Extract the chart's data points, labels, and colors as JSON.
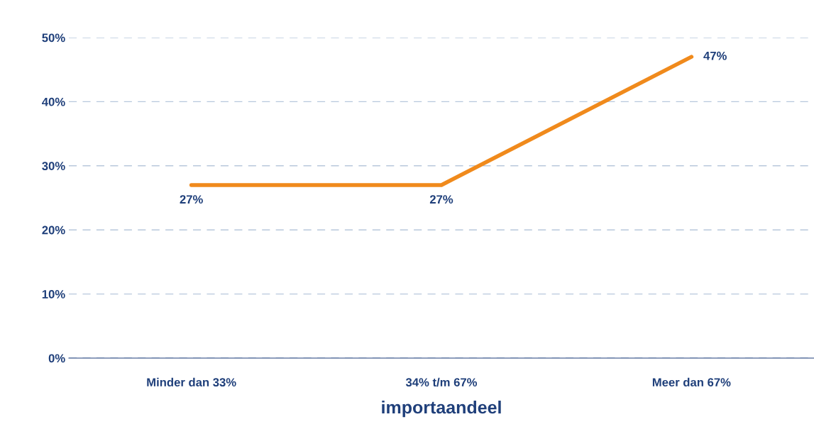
{
  "chart_data": {
    "type": "line",
    "xlabel": "importaandeel",
    "categories": [
      "Minder dan 33%",
      "34% t/m 67%",
      "Meer dan 67%"
    ],
    "series": [
      {
        "color": "#f08a1c",
        "values": [
          27,
          27,
          47
        ],
        "value_labels": [
          "27%",
          "27%",
          "47%"
        ]
      }
    ],
    "ylim": [
      0,
      50
    ],
    "yticks": [
      {
        "value": 0,
        "label": "0%"
      },
      {
        "value": 10,
        "label": "10%"
      },
      {
        "value": 20,
        "label": "20%"
      },
      {
        "value": 30,
        "label": "30%"
      },
      {
        "value": 40,
        "label": "40%"
      },
      {
        "value": 50,
        "label": "50%"
      }
    ],
    "grid": "y",
    "marker": "none",
    "line_style": "solid",
    "legend": false
  }
}
